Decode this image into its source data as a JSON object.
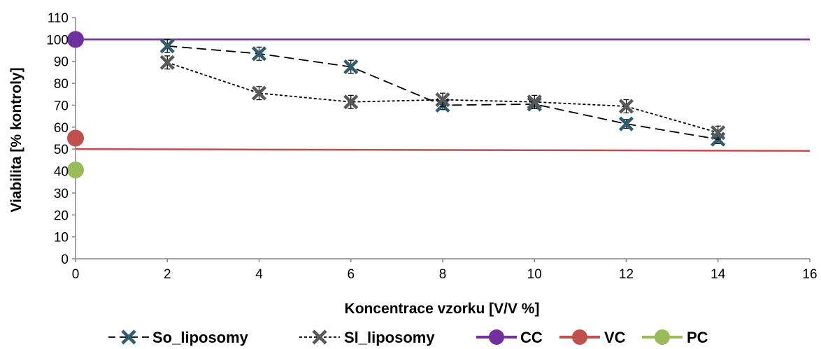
{
  "chart_data": {
    "type": "scatter",
    "xlabel": "Koncentrace vzorku [V/V %]",
    "ylabel": "Viabilita [% kontroly]",
    "xlim": [
      0,
      16
    ],
    "ylim": [
      0,
      110
    ],
    "xticks": [
      0,
      2,
      4,
      6,
      8,
      10,
      12,
      14,
      16
    ],
    "yticks": [
      0,
      10,
      20,
      30,
      40,
      50,
      60,
      70,
      80,
      90,
      100,
      110
    ],
    "grid": false,
    "legend_position": "bottom",
    "series": [
      {
        "name": "So_liposomy",
        "marker": "x",
        "line_style": "long-dash",
        "color": "#2e5e6e",
        "x": [
          2,
          4,
          6,
          8,
          10,
          12,
          14
        ],
        "y": [
          97,
          93.5,
          87.5,
          70,
          70.5,
          61.5,
          54.5
        ],
        "error": [
          3,
          3,
          3,
          2,
          2,
          2,
          2
        ]
      },
      {
        "name": "Sl_liposomy",
        "marker": "x",
        "line_style": "short-dash",
        "color": "#595959",
        "x": [
          2,
          4,
          6,
          8,
          10,
          12,
          14
        ],
        "y": [
          89.5,
          75.5,
          71.5,
          72.5,
          71.5,
          69.5,
          57.5
        ],
        "error": [
          3,
          3,
          3,
          3,
          3,
          3,
          3
        ]
      },
      {
        "name": "CC",
        "marker": "circle",
        "line_style": "solid",
        "color": "#7030a0",
        "x": [
          0
        ],
        "y": [
          100
        ],
        "line_y": [
          100,
          100
        ]
      },
      {
        "name": "VC",
        "marker": "circle",
        "line_style": "solid",
        "color": "#c0504d",
        "x": [
          0
        ],
        "y": [
          55
        ],
        "line_y": [
          50,
          49.2
        ]
      },
      {
        "name": "PC",
        "marker": "circle",
        "line_style": "solid",
        "color": "#9bbb59",
        "x": [
          0
        ],
        "y": [
          40.5
        ]
      }
    ]
  }
}
